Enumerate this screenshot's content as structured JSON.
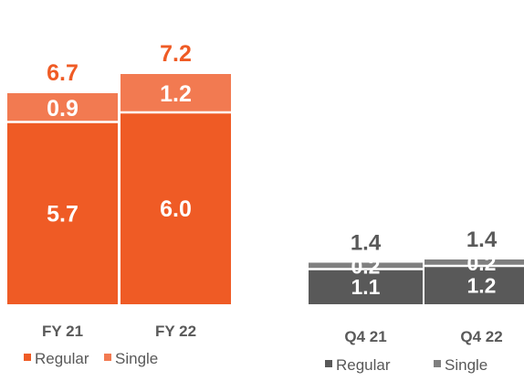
{
  "chart_data": [
    {
      "type": "bar",
      "stacked": true,
      "categories": [
        "FY 21",
        "FY 22"
      ],
      "series": [
        {
          "name": "Regular",
          "values": [
            5.7,
            6.0
          ],
          "labels": [
            "5.7",
            "6.0"
          ],
          "color": "#ef5b25"
        },
        {
          "name": "Single",
          "values": [
            0.9,
            1.2
          ],
          "labels": [
            "0.9",
            "1.2"
          ],
          "color": "#f27a51"
        }
      ],
      "totals": [
        6.7,
        7.2
      ],
      "total_labels": [
        "6.7",
        "7.2"
      ],
      "total_color": "#ef5b25",
      "legend": {
        "position": "bottom",
        "items": [
          "Regular",
          "Single"
        ]
      },
      "title": "",
      "xlabel": "",
      "ylabel": ""
    },
    {
      "type": "bar",
      "stacked": true,
      "categories": [
        "Q4 21",
        "Q4 22"
      ],
      "series": [
        {
          "name": "Regular",
          "values": [
            1.1,
            1.2
          ],
          "labels": [
            "1.1",
            "1.2"
          ],
          "color": "#595959"
        },
        {
          "name": "Single",
          "values": [
            0.2,
            0.2
          ],
          "labels": [
            "0.2",
            "0.2"
          ],
          "color": "#7f7f7f"
        }
      ],
      "totals": [
        1.4,
        1.4
      ],
      "total_labels": [
        "1.4",
        "1.4"
      ],
      "total_color": "#595959",
      "legend": {
        "position": "bottom",
        "items": [
          "Regular",
          "Single"
        ]
      },
      "title": "",
      "xlabel": "",
      "ylabel": ""
    }
  ]
}
